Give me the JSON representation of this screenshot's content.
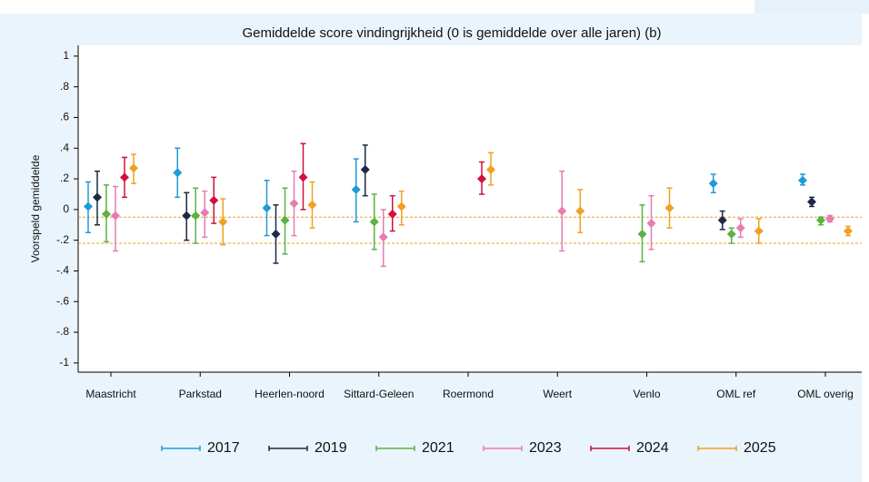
{
  "chart_data": {
    "type": "errorbar",
    "title": "Gemiddelde score vindingrijkheid (0 is gemiddelde over alle jaren) (b)",
    "y_label": "Voorspeld gemiddelde",
    "categories": [
      "Maastricht",
      "Parkstad",
      "Heerlen-noord",
      "Sittard-Geleen",
      "Roermond",
      "Weert",
      "Venlo",
      "OML ref",
      "OML overig"
    ],
    "ylim": [
      -1.06,
      1.07
    ],
    "yticks": [
      -1,
      {
        "value": -0.8,
        "label": "-.8"
      },
      {
        "value": -0.6,
        "label": "-.6"
      },
      {
        "value": -0.4,
        "label": "-.4"
      },
      {
        "value": -0.2,
        "label": "-.2"
      },
      0,
      {
        "value": 0.2,
        "label": ".2"
      },
      {
        "value": 0.4,
        "label": ".4"
      },
      {
        "value": 0.6,
        "label": ".6"
      },
      {
        "value": 0.8,
        "label": ".8"
      },
      1
    ],
    "reference_lines": [
      -0.05,
      -0.22
    ],
    "reference_color": "#e8a020",
    "series": [
      {
        "name": "2017",
        "color": "#1f9bd7",
        "values": [
          0.02,
          0.24,
          0.01,
          0.13,
          null,
          null,
          null,
          0.17,
          0.19
        ],
        "lower": [
          -0.15,
          0.08,
          -0.17,
          -0.08,
          null,
          null,
          null,
          0.11,
          0.16
        ],
        "upper": [
          0.18,
          0.4,
          0.19,
          0.33,
          null,
          null,
          null,
          0.23,
          0.23
        ]
      },
      {
        "name": "2019",
        "color": "#1b2a45",
        "values": [
          0.08,
          -0.04,
          -0.16,
          0.26,
          null,
          null,
          null,
          -0.07,
          0.05
        ],
        "lower": [
          -0.1,
          -0.2,
          -0.35,
          0.09,
          null,
          null,
          null,
          -0.13,
          0.02
        ],
        "upper": [
          0.25,
          0.11,
          0.03,
          0.42,
          null,
          null,
          null,
          -0.01,
          0.08
        ]
      },
      {
        "name": "2021",
        "color": "#5bb344",
        "values": [
          -0.03,
          -0.04,
          -0.07,
          -0.08,
          null,
          null,
          -0.16,
          -0.16,
          -0.07
        ],
        "lower": [
          -0.21,
          -0.22,
          -0.29,
          -0.26,
          null,
          null,
          -0.34,
          -0.22,
          -0.1
        ],
        "upper": [
          0.16,
          0.14,
          0.14,
          0.1,
          null,
          null,
          0.03,
          -0.12,
          -0.05
        ]
      },
      {
        "name": "2023",
        "color": "#e97bb2",
        "values": [
          -0.04,
          -0.02,
          0.04,
          -0.18,
          null,
          -0.01,
          -0.09,
          -0.12,
          -0.06
        ],
        "lower": [
          -0.27,
          -0.18,
          -0.17,
          -0.37,
          null,
          -0.27,
          -0.26,
          -0.18,
          -0.08
        ],
        "upper": [
          0.15,
          0.12,
          0.25,
          0.0,
          null,
          0.25,
          0.09,
          -0.06,
          -0.04
        ]
      },
      {
        "name": "2024",
        "color": "#d1103b",
        "values": [
          0.21,
          0.06,
          0.21,
          -0.03,
          0.2,
          null,
          null,
          null,
          null
        ],
        "lower": [
          0.08,
          -0.09,
          0.0,
          -0.14,
          0.1,
          null,
          null,
          null,
          null
        ],
        "upper": [
          0.34,
          0.21,
          0.43,
          0.09,
          0.31,
          null,
          null,
          null,
          null
        ]
      },
      {
        "name": "2025",
        "color": "#f0a122",
        "values": [
          0.27,
          -0.08,
          0.03,
          0.02,
          0.26,
          -0.01,
          0.01,
          -0.14,
          -0.14
        ],
        "lower": [
          0.17,
          -0.23,
          -0.12,
          -0.1,
          0.16,
          -0.15,
          -0.12,
          -0.22,
          -0.17
        ],
        "upper": [
          0.36,
          0.07,
          0.18,
          0.12,
          0.37,
          0.13,
          0.14,
          -0.06,
          -0.11
        ]
      }
    ]
  }
}
